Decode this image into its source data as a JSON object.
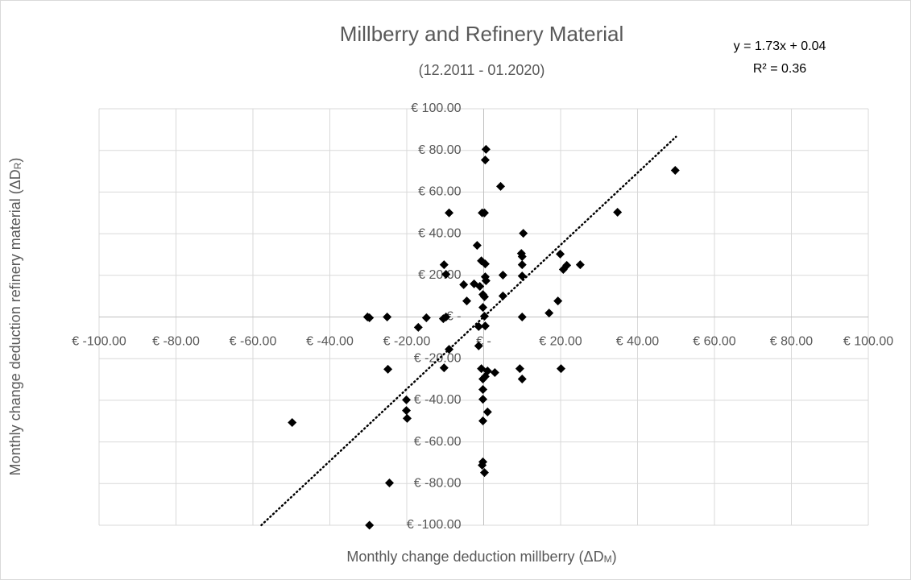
{
  "chart_data": {
    "type": "scatter",
    "title": "Millberry and Refinery Material",
    "subtitle": "(12.2011 - 01.2020)",
    "x_label": "Monthly change deduction millberry (ΔD",
    "x_label_sub": "M",
    "x_label_end": ")",
    "y_label": "Monthly change deduction refinery material (ΔD",
    "y_label_sub": "R",
    "y_label_end": ")",
    "color": "#000000",
    "grid": true,
    "xlim": [
      -100,
      100
    ],
    "ylim": [
      -100,
      100
    ],
    "xticks": [
      {
        "value": -100,
        "label": "€ -100.00"
      },
      {
        "value": -80,
        "label": "€ -80.00"
      },
      {
        "value": -60,
        "label": "€ -60.00"
      },
      {
        "value": -40,
        "label": "€ -40.00"
      },
      {
        "value": -20,
        "label": "€ -20.00"
      },
      {
        "value": 0,
        "label": "€ -"
      },
      {
        "value": 20,
        "label": "€ 20.00"
      },
      {
        "value": 40,
        "label": "€ 40.00"
      },
      {
        "value": 60,
        "label": "€ 60.00"
      },
      {
        "value": 80,
        "label": "€ 80.00"
      },
      {
        "value": 100,
        "label": "€ 100.00"
      }
    ],
    "yticks": [
      {
        "value": -100,
        "label": "€ -100.00"
      },
      {
        "value": -80,
        "label": "€ -80.00"
      },
      {
        "value": -60,
        "label": "€ -60.00"
      },
      {
        "value": -40,
        "label": "€ -40.00"
      },
      {
        "value": -20,
        "label": "€ -20.00"
      },
      {
        "value": 0,
        "label": "€ -"
      },
      {
        "value": 20,
        "label": "€ 20.00"
      },
      {
        "value": 40,
        "label": "€ 40.00"
      },
      {
        "value": 60,
        "label": "€ 60.00"
      },
      {
        "value": 80,
        "label": "€ 80.00"
      },
      {
        "value": 100,
        "label": "€ 100.00"
      }
    ],
    "x": [
      0.6,
      0.4,
      4.4,
      49.8,
      34.8,
      -9.0,
      -0.4,
      0.2,
      10.3,
      -1.7,
      -0.6,
      0.4,
      -10.3,
      9.8,
      10.0,
      10.0,
      19.9,
      20.7,
      21.6,
      25.1,
      -9.8,
      0.4,
      0.6,
      5.0,
      10.0,
      -5.2,
      -2.5,
      -1.0,
      -0.2,
      0.2,
      5.0,
      -4.4,
      19.3,
      -0.2,
      17.0,
      -30.2,
      -29.7,
      -25.1,
      -14.9,
      -9.8,
      -10.5,
      0.2,
      10.0,
      -17.0,
      -1.3,
      0.4,
      -9.0,
      -1.3,
      -10.3,
      -24.9,
      -0.6,
      1.0,
      2.9,
      9.4,
      20.1,
      -0.2,
      0.4,
      10.0,
      -0.2,
      -20.1,
      -0.2,
      1.0,
      -20.1,
      -19.9,
      -0.2,
      -49.8,
      -0.2,
      -0.4,
      0.2,
      -24.5,
      -29.7
    ],
    "values": [
      80.5,
      75.4,
      62.7,
      70.4,
      50.3,
      50.0,
      50.0,
      50.0,
      40.2,
      34.4,
      27.0,
      25.5,
      25.1,
      30.5,
      29.0,
      25.1,
      30.2,
      22.8,
      24.8,
      25.1,
      20.5,
      19.3,
      17.4,
      20.1,
      19.7,
      15.5,
      15.9,
      14.7,
      10.8,
      9.7,
      10.1,
      7.7,
      7.7,
      4.6,
      1.9,
      0.0,
      -0.4,
      0.0,
      -0.4,
      0.0,
      -0.8,
      0.4,
      0.0,
      -5.0,
      -4.6,
      -4.3,
      -15.5,
      -13.9,
      -24.4,
      -25.1,
      -24.8,
      -25.9,
      -26.7,
      -24.8,
      -24.8,
      -29.8,
      -28.6,
      -29.8,
      -34.8,
      -39.8,
      -39.5,
      -45.6,
      -44.9,
      -48.7,
      -49.9,
      -50.7,
      -69.6,
      -71.2,
      -74.7,
      -79.7,
      -100.0
    ],
    "trendline": {
      "slope": 1.73,
      "intercept": 0.04,
      "x_range": [
        -57.8,
        50
      ],
      "equation": "y = 1.73x + 0.04",
      "r_squared_label": "R² = 0.36"
    }
  }
}
